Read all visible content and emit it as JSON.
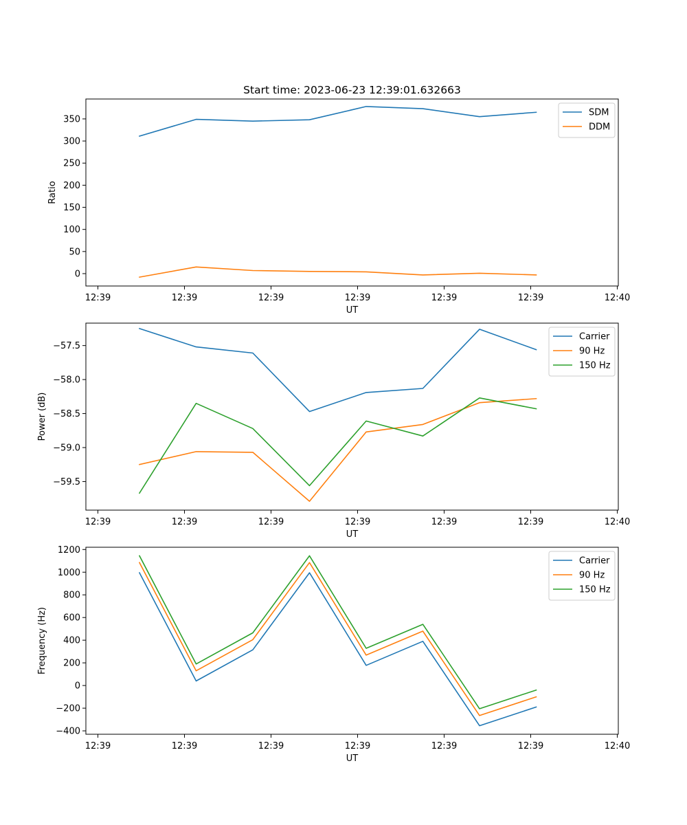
{
  "figure": {
    "title": "Start time: 2023-06-23 12:39:01.632663"
  },
  "chart_data": [
    {
      "type": "line",
      "title": "Start time: 2023-06-23 12:39:01.632663",
      "xlabel": "UT",
      "ylabel": "Ratio",
      "x": [
        "12:39:02.3",
        "12:39:03.1",
        "12:39:03.8",
        "12:39:04.6",
        "12:39:05.4",
        "12:39:06.2",
        "12:39:07.0",
        "12:39:07.8"
      ],
      "xtick_labels": [
        "12:39",
        "12:39",
        "12:39",
        "12:39",
        "12:39",
        "12:39",
        "12:40"
      ],
      "yticks": [
        0,
        50,
        100,
        150,
        200,
        250,
        300,
        350
      ],
      "ylim": [
        -28,
        395
      ],
      "legend": "top-right",
      "series": [
        {
          "name": "SDM",
          "color": "#1f77b4",
          "values": [
            311,
            349,
            345,
            348,
            378,
            373,
            355,
            365
          ]
        },
        {
          "name": "DDM",
          "color": "#ff7f0e",
          "values": [
            -8,
            15,
            7,
            5,
            4,
            -3,
            1,
            -3
          ]
        }
      ]
    },
    {
      "type": "line",
      "xlabel": "UT",
      "ylabel": "Power (dB)",
      "x": [
        "12:39:02.3",
        "12:39:03.1",
        "12:39:03.8",
        "12:39:04.6",
        "12:39:05.4",
        "12:39:06.2",
        "12:39:07.0",
        "12:39:07.8"
      ],
      "xtick_labels": [
        "12:39",
        "12:39",
        "12:39",
        "12:39",
        "12:39",
        "12:39",
        "12:40"
      ],
      "yticks": [
        -59.5,
        -59.0,
        -58.5,
        -58.0,
        -57.5
      ],
      "ytick_labels": [
        "−59.5",
        "−59.0",
        "−58.5",
        "−58.0",
        "−57.5"
      ],
      "ylim": [
        -59.92,
        -57.17
      ],
      "legend": "top-right",
      "series": [
        {
          "name": "Carrier",
          "color": "#1f77b4",
          "values": [
            -57.25,
            -57.52,
            -57.61,
            -58.47,
            -58.19,
            -58.13,
            -57.26,
            -57.56
          ]
        },
        {
          "name": "90 Hz",
          "color": "#ff7f0e",
          "values": [
            -59.25,
            -59.06,
            -59.07,
            -59.79,
            -58.77,
            -58.66,
            -58.34,
            -58.28
          ]
        },
        {
          "name": "150 Hz",
          "color": "#2ca02c",
          "values": [
            -59.67,
            -58.35,
            -58.72,
            -59.56,
            -58.61,
            -58.83,
            -58.27,
            -58.43
          ]
        }
      ]
    },
    {
      "type": "line",
      "xlabel": "UT",
      "ylabel": "Frequency (Hz)",
      "x": [
        "12:39:02.3",
        "12:39:03.1",
        "12:39:03.8",
        "12:39:04.6",
        "12:39:05.4",
        "12:39:06.2",
        "12:39:07.0",
        "12:39:07.8"
      ],
      "xtick_labels": [
        "12:39",
        "12:39",
        "12:39",
        "12:39",
        "12:39",
        "12:39",
        "12:40"
      ],
      "yticks": [
        -400,
        -200,
        0,
        200,
        400,
        600,
        800,
        1000,
        1200
      ],
      "ytick_labels": [
        "−400",
        "−200",
        "0",
        "200",
        "400",
        "600",
        "800",
        "1000",
        "1200"
      ],
      "ylim": [
        -430,
        1220
      ],
      "legend": "top-right",
      "series": [
        {
          "name": "Carrier",
          "color": "#1f77b4",
          "values": [
            995,
            40,
            315,
            995,
            178,
            390,
            -355,
            -190
          ]
        },
        {
          "name": "90 Hz",
          "color": "#ff7f0e",
          "values": [
            1085,
            130,
            405,
            1085,
            268,
            480,
            -265,
            -100
          ]
        },
        {
          "name": "150 Hz",
          "color": "#2ca02c",
          "values": [
            1145,
            190,
            465,
            1145,
            328,
            540,
            -205,
            -40
          ]
        }
      ]
    }
  ]
}
